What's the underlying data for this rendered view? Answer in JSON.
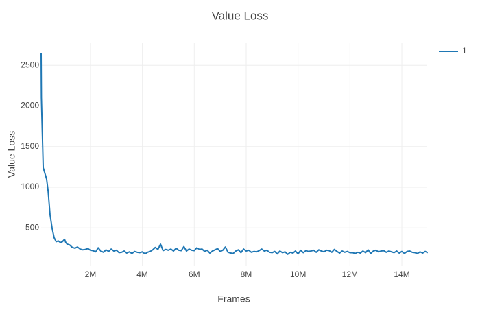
{
  "chart_data": {
    "type": "line",
    "title": "Value Loss",
    "x_label": "Frames",
    "y_label": "Value Loss",
    "x": [
      100000,
      110000,
      180000,
      310000,
      370000,
      440000,
      520000,
      600000,
      680000,
      760000,
      840000,
      920000,
      1000000,
      1050000,
      1100000,
      1200000,
      1300000,
      1400000,
      1500000,
      1600000,
      1700000,
      1800000,
      1900000,
      2000000,
      2100000,
      2200000,
      2300000,
      2400000,
      2500000,
      2600000,
      2700000,
      2800000,
      2900000,
      3000000,
      3100000,
      3200000,
      3300000,
      3400000,
      3500000,
      3600000,
      3700000,
      3800000,
      3900000,
      4000000,
      4100000,
      4200000,
      4300000,
      4400000,
      4500000,
      4600000,
      4700000,
      4800000,
      4900000,
      5000000,
      5100000,
      5200000,
      5300000,
      5400000,
      5500000,
      5600000,
      5700000,
      5800000,
      5900000,
      6000000,
      6100000,
      6200000,
      6300000,
      6400000,
      6500000,
      6600000,
      6700000,
      6800000,
      6900000,
      7000000,
      7100000,
      7200000,
      7300000,
      7400000,
      7500000,
      7600000,
      7700000,
      7800000,
      7900000,
      8000000,
      8100000,
      8200000,
      8300000,
      8400000,
      8500000,
      8600000,
      8700000,
      8800000,
      8900000,
      9000000,
      9100000,
      9200000,
      9300000,
      9400000,
      9500000,
      9600000,
      9700000,
      9800000,
      9900000,
      10000000,
      10100000,
      10200000,
      10300000,
      10400000,
      10500000,
      10600000,
      10700000,
      10800000,
      10900000,
      11000000,
      11100000,
      11200000,
      11300000,
      11400000,
      11500000,
      11600000,
      11700000,
      11800000,
      11900000,
      12000000,
      12100000,
      12200000,
      12300000,
      12400000,
      12500000,
      12600000,
      12700000,
      12800000,
      12900000,
      13000000,
      13100000,
      13200000,
      13300000,
      13400000,
      13500000,
      13600000,
      13700000,
      13800000,
      13900000,
      14000000,
      14100000,
      14200000,
      14300000,
      14400000,
      14500000,
      14600000,
      14700000,
      14800000,
      14900000,
      15000000
    ],
    "series": [
      {
        "name": "1",
        "color": "#1f77b4",
        "values": [
          2650,
          2100,
          1240,
          1100,
          950,
          670,
          500,
          380,
          330,
          340,
          320,
          330,
          360,
          320,
          300,
          290,
          260,
          250,
          265,
          240,
          230,
          235,
          245,
          225,
          220,
          205,
          255,
          215,
          200,
          230,
          210,
          240,
          215,
          225,
          195,
          200,
          215,
          190,
          205,
          185,
          210,
          200,
          195,
          205,
          180,
          200,
          210,
          230,
          260,
          235,
          300,
          220,
          235,
          225,
          240,
          215,
          250,
          225,
          220,
          270,
          215,
          240,
          225,
          220,
          255,
          235,
          240,
          210,
          225,
          190,
          215,
          230,
          245,
          210,
          225,
          265,
          200,
          190,
          185,
          215,
          230,
          195,
          240,
          215,
          225,
          200,
          210,
          205,
          220,
          240,
          215,
          225,
          200,
          195,
          210,
          180,
          215,
          195,
          205,
          175,
          200,
          190,
          215,
          180,
          225,
          195,
          220,
          210,
          215,
          225,
          200,
          230,
          215,
          205,
          225,
          220,
          200,
          235,
          210,
          190,
          215,
          200,
          210,
          195,
          195,
          185,
          200,
          190,
          215,
          195,
          230,
          185,
          215,
          225,
          205,
          215,
          220,
          200,
          215,
          205,
          195,
          215,
          190,
          210,
          185,
          210,
          215,
          200,
          195,
          185,
          205,
          190,
          210,
          195
        ]
      }
    ],
    "xlim": [
      100000,
      14950000
    ],
    "xticks": [
      {
        "value": 2000000,
        "label": "2M"
      },
      {
        "value": 4000000,
        "label": "4M"
      },
      {
        "value": 6000000,
        "label": "6M"
      },
      {
        "value": 8000000,
        "label": "8M"
      },
      {
        "value": 10000000,
        "label": "10M"
      },
      {
        "value": 12000000,
        "label": "12M"
      },
      {
        "value": 14000000,
        "label": "14M"
      }
    ],
    "ylim": [
      30,
      2780
    ],
    "yticks": [
      500,
      1000,
      1500,
      2000,
      2500
    ],
    "grid": true,
    "legend": "top-right"
  }
}
